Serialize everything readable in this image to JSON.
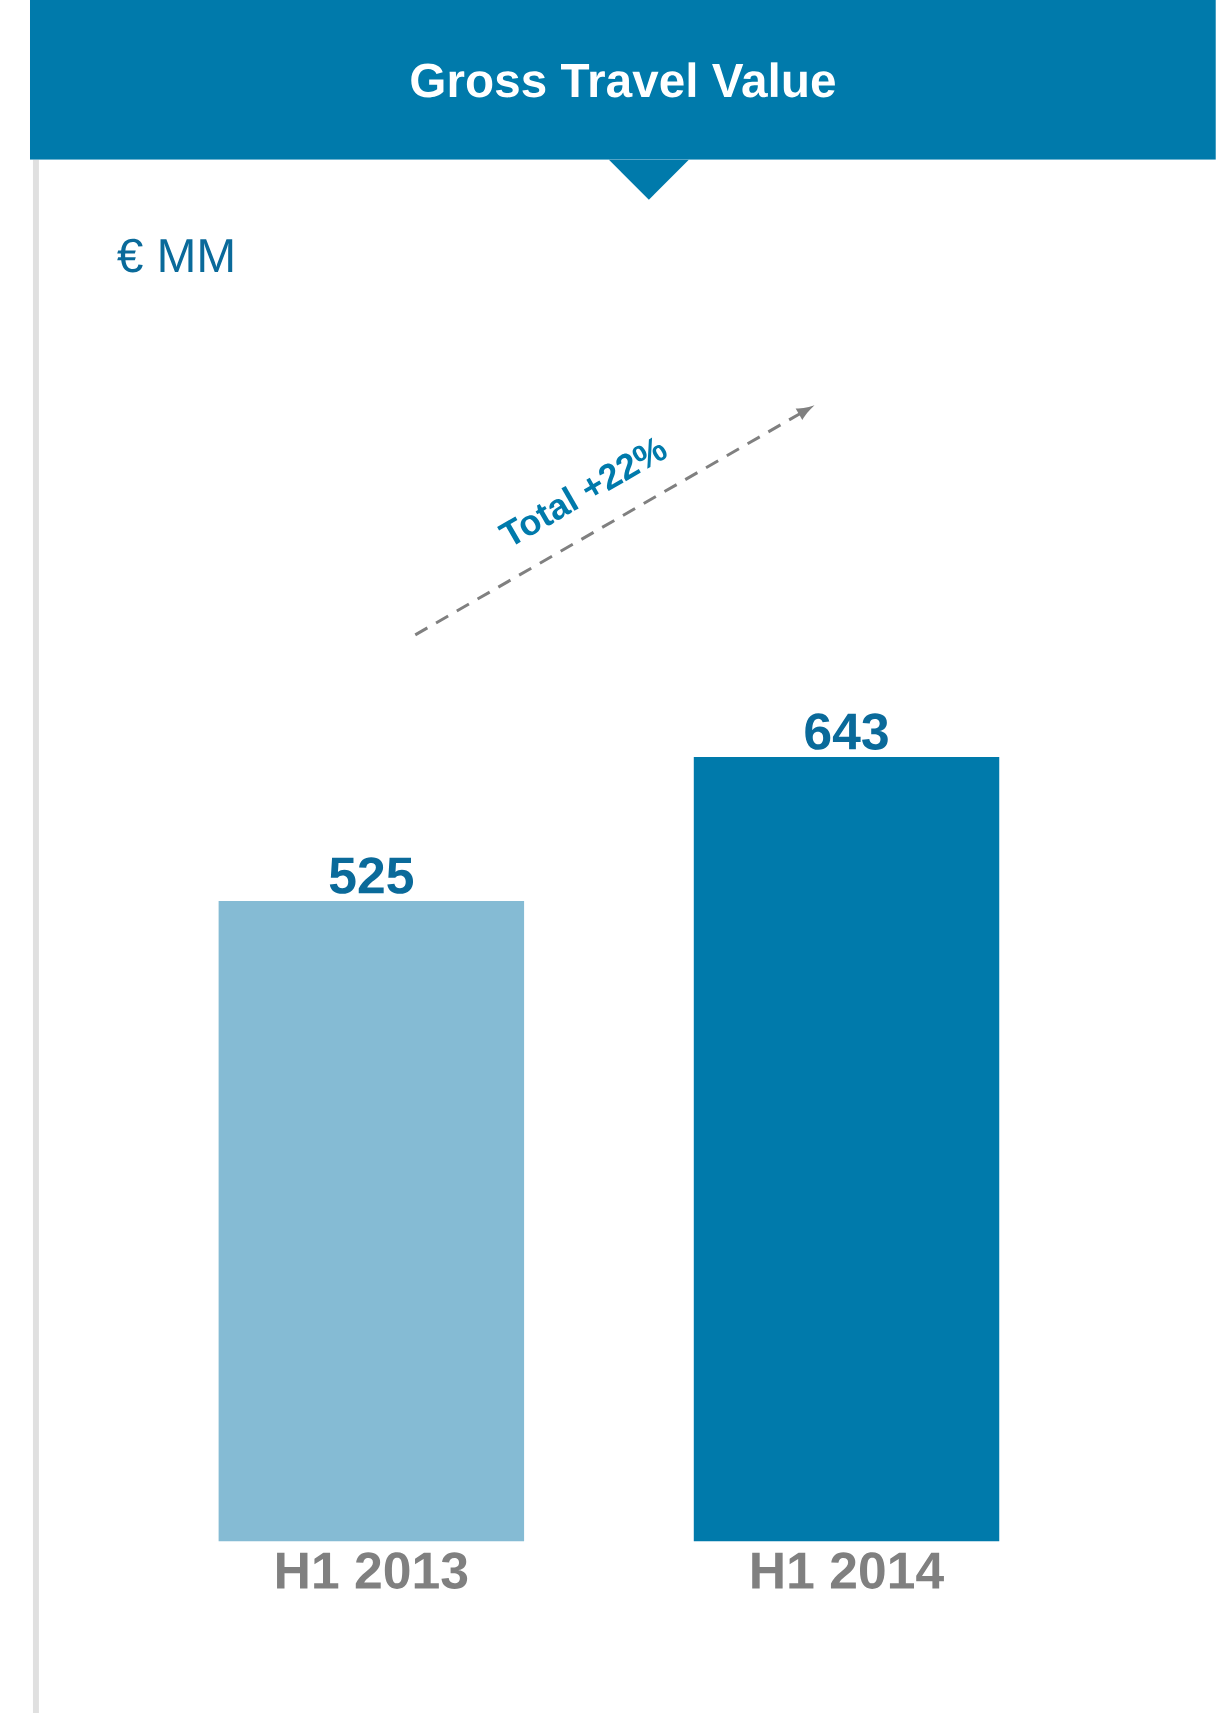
{
  "chart_data": {
    "type": "bar",
    "title": "Gross Travel Value",
    "categories": [
      "H1 2013",
      "H1 2014"
    ],
    "values": [
      525,
      643
    ],
    "colors": [
      "#85bbd4",
      "#007aab"
    ],
    "data_labels": true,
    "annotations": [
      "€ MM",
      "Total +22%"
    ]
  }
}
